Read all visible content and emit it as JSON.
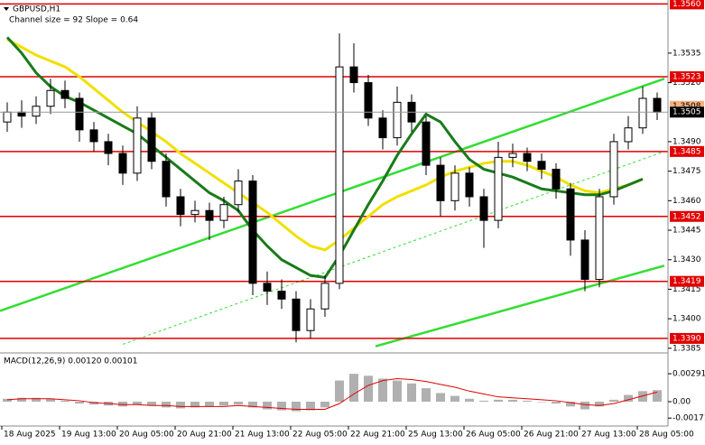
{
  "chart_data": {
    "type": "candlestick",
    "title": "GBPUSD,H1",
    "subtitle": "Channel size = 92 Slope = 0.64",
    "ylim": [
      1.3384,
      1.3562
    ],
    "yticks": [
      1.3535,
      {
        "value": 1.352,
        "label": "1.3520"
      },
      {
        "value": 1.349,
        "label": "1.3490"
      },
      1.3475,
      {
        "value": 1.346,
        "label": "1.3460"
      },
      1.3445,
      {
        "value": 1.343,
        "label": "1.3430"
      },
      1.3415,
      {
        "value": 1.34,
        "label": "1.3400"
      },
      1.3385
    ],
    "xticks": [
      {
        "value": 0,
        "label": "18 Aug 2025"
      },
      {
        "value": 4,
        "label": "19 Aug 13:00"
      },
      {
        "value": 8,
        "label": "20 Aug 05:00"
      },
      {
        "value": 12,
        "label": "20 Aug 21:00"
      },
      {
        "value": 16,
        "label": "21 Aug 13:00"
      },
      {
        "value": 20,
        "label": "22 Aug 05:00"
      },
      {
        "value": 24,
        "label": "22 Aug 21:00"
      },
      {
        "value": 28,
        "label": "25 Aug 13:00"
      },
      {
        "value": 32,
        "label": "26 Aug 05:00"
      },
      {
        "value": 36,
        "label": "26 Aug 21:00"
      },
      {
        "value": 40,
        "label": "27 Aug 13:00"
      },
      {
        "value": 44,
        "label": "28 Aug 05:00"
      }
    ],
    "candles": {
      "open": [
        1.35,
        1.3505,
        1.3503,
        1.3508,
        1.3516,
        1.3512,
        1.3496,
        1.349,
        1.3484,
        1.3474,
        1.3502,
        1.348,
        1.3462,
        1.3453,
        1.3455,
        1.345,
        1.3458,
        1.347,
        1.3418,
        1.3414,
        1.341,
        1.3394,
        1.3405,
        1.3418,
        1.3528,
        1.352,
        1.3502,
        1.3492,
        1.351,
        1.35,
        1.3478,
        1.346,
        1.3474,
        1.3462,
        1.345,
        1.3482,
        1.3484,
        1.348,
        1.3476,
        1.3466,
        1.344,
        1.342,
        1.3462,
        1.349,
        1.3497,
        1.3512
      ],
      "high": [
        1.351,
        1.3511,
        1.3513,
        1.3522,
        1.3521,
        1.3515,
        1.35,
        1.3494,
        1.3488,
        1.3508,
        1.3505,
        1.3484,
        1.3466,
        1.346,
        1.3459,
        1.3462,
        1.3476,
        1.3473,
        1.3424,
        1.342,
        1.3414,
        1.341,
        1.3422,
        1.3545,
        1.354,
        1.3524,
        1.3506,
        1.3518,
        1.3514,
        1.3503,
        1.3482,
        1.3478,
        1.3477,
        1.3466,
        1.349,
        1.3489,
        1.3487,
        1.3484,
        1.3479,
        1.3469,
        1.3445,
        1.3466,
        1.3494,
        1.3503,
        1.3518,
        1.3515
      ],
      "low": [
        1.3495,
        1.3497,
        1.3499,
        1.3504,
        1.3507,
        1.349,
        1.3485,
        1.3478,
        1.3468,
        1.347,
        1.3476,
        1.3457,
        1.3447,
        1.3449,
        1.344,
        1.3446,
        1.3454,
        1.3412,
        1.3407,
        1.3405,
        1.3388,
        1.339,
        1.3401,
        1.3415,
        1.3515,
        1.3498,
        1.3486,
        1.3488,
        1.3495,
        1.3473,
        1.3452,
        1.3455,
        1.3457,
        1.3436,
        1.3446,
        1.3477,
        1.3475,
        1.3471,
        1.3461,
        1.3432,
        1.3414,
        1.3416,
        1.3458,
        1.3486,
        1.3494,
        1.3501
      ],
      "close": [
        1.3505,
        1.3503,
        1.3508,
        1.3516,
        1.3512,
        1.3496,
        1.349,
        1.3484,
        1.3474,
        1.3502,
        1.348,
        1.3462,
        1.3453,
        1.3455,
        1.345,
        1.3458,
        1.347,
        1.3418,
        1.3414,
        1.341,
        1.3394,
        1.3405,
        1.3418,
        1.3528,
        1.352,
        1.3502,
        1.3492,
        1.351,
        1.35,
        1.3478,
        1.346,
        1.3474,
        1.3462,
        1.345,
        1.3482,
        1.3484,
        1.348,
        1.3476,
        1.3466,
        1.344,
        1.342,
        1.3462,
        1.349,
        1.3497,
        1.3512,
        1.3505
      ],
      "up_color": "#ffffff",
      "down_color": "#000000"
    },
    "series": [
      {
        "color": "#f0e000",
        "values": [
          1.3542,
          1.3538,
          1.3534,
          1.3531,
          1.3528,
          1.3523,
          1.3517,
          1.3511,
          1.3505,
          1.35,
          1.3495,
          1.349,
          1.3484,
          1.3479,
          1.3474,
          1.3469,
          1.3464,
          1.3459,
          1.3454,
          1.3448,
          1.3442,
          1.3437,
          1.3435,
          1.344,
          1.3446,
          1.3452,
          1.3458,
          1.3462,
          1.3465,
          1.3468,
          1.3472,
          1.3475,
          1.3477,
          1.3479,
          1.348,
          1.348,
          1.3478,
          1.3475,
          1.3472,
          1.3468,
          1.3465,
          1.3464,
          1.3466,
          1.3468,
          1.3471,
          null
        ]
      },
      {
        "color": "#1a7a1a",
        "values": [
          1.3543,
          1.3535,
          1.3525,
          1.3518,
          1.3513,
          1.351,
          1.3506,
          1.3502,
          1.3498,
          1.3494,
          1.3488,
          1.3482,
          1.3476,
          1.347,
          1.3464,
          1.346,
          1.3455,
          1.3445,
          1.3437,
          1.343,
          1.3426,
          1.3422,
          1.3421,
          1.3432,
          1.3445,
          1.3458,
          1.347,
          1.3483,
          1.3494,
          1.3504,
          1.35,
          1.349,
          1.3481,
          1.3476,
          1.3474,
          1.3472,
          1.3469,
          1.3466,
          1.3465,
          1.3464,
          1.3463,
          1.3463,
          1.3465,
          1.3468,
          1.3471,
          null
        ]
      }
    ],
    "channel": [
      {
        "color": "#33dd33",
        "dashed": false,
        "x": [
          -0.5,
          45.5
        ],
        "values": [
          1.3404,
          1.3522
        ]
      },
      {
        "color": "#33dd33",
        "dashed": true,
        "x": [
          8,
          45.5
        ],
        "values": [
          1.3387,
          1.3485
        ]
      },
      {
        "color": "#33dd33",
        "dashed": false,
        "x": [
          25.5,
          45.5
        ],
        "values": [
          1.3386,
          1.3427
        ]
      }
    ],
    "levels": [
      {
        "value": 1.356,
        "label": "1.3560"
      },
      1.3523,
      1.3485,
      1.3452,
      1.3419,
      {
        "value": 1.339,
        "label": "1.3390"
      }
    ],
    "level_color": "#e00000",
    "ask": 1.3508,
    "current_price": 1.3505,
    "macd": {
      "title": "MACD(12,26,9) 0.00120 0.00101",
      "ylim": [
        -0.00235,
        0.00376
      ],
      "yticks": [
        0.00291,
        {
          "value": 0,
          "label": "0.00"
        },
        -0.00171
      ],
      "histogram": {
        "color": "#b0b0b0",
        "values": [
          0.0003,
          0.0004,
          0.0004,
          0.0003,
          0.0001,
          -0.0002,
          -0.0003,
          -0.0004,
          -0.0005,
          -0.0003,
          -0.0004,
          -0.0006,
          -0.0007,
          -0.0006,
          -0.0005,
          -0.0004,
          -0.0003,
          -0.0006,
          -0.0008,
          -0.0009,
          -0.001,
          -0.0009,
          -0.0006,
          0.0022,
          0.0029,
          0.0027,
          0.0024,
          0.0022,
          0.0019,
          0.0014,
          0.0009,
          0.0006,
          0.0003,
          0.0001,
          0.0002,
          0.0002,
          0.0001,
          0,
          -0.0002,
          -0.0005,
          -0.0008,
          -0.0005,
          0.0002,
          0.0007,
          0.0011,
          0.0012
        ]
      },
      "signal": {
        "color": "#e00000",
        "values": [
          0.0002,
          0.0003,
          0.0003,
          0.0003,
          0.0002,
          0.0001,
          -0.0001,
          -0.0002,
          -0.0003,
          -0.0003,
          -0.0004,
          -0.0004,
          -0.0005,
          -0.0005,
          -0.0005,
          -0.0005,
          -0.0004,
          -0.0005,
          -0.0006,
          -0.0007,
          -0.0008,
          -0.0008,
          -0.0008,
          -0.0002,
          0.0008,
          0.0017,
          0.0022,
          0.0024,
          0.0023,
          0.0021,
          0.0018,
          0.0015,
          0.0011,
          0.0008,
          0.0005,
          0.0004,
          0.0003,
          0.0002,
          0.0001,
          -0.0001,
          -0.0003,
          -0.0004,
          -0.0002,
          0.0002,
          0.0006,
          0.001
        ]
      }
    }
  }
}
